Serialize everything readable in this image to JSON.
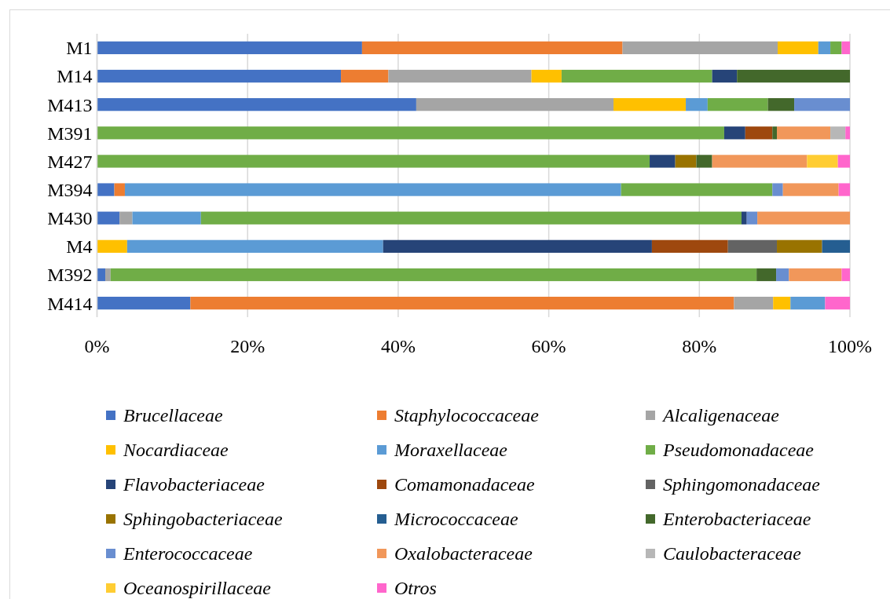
{
  "chart_data": {
    "type": "bar",
    "orientation": "horizontal",
    "stacked": true,
    "categories": [
      "M1",
      "M14",
      "M413",
      "M391",
      "M427",
      "M394",
      "M430",
      "M4",
      "M392",
      "M414"
    ],
    "xlim": [
      0,
      100
    ],
    "xticks": [
      {
        "value": 0,
        "label": "0%"
      },
      {
        "value": 20,
        "label": "20%"
      },
      {
        "value": 40,
        "label": "40%"
      },
      {
        "value": 60,
        "label": "60%"
      },
      {
        "value": 80,
        "label": "80%"
      },
      {
        "value": 100,
        "label": "100%"
      }
    ],
    "grid": "x",
    "legend": "bottom",
    "series": [
      {
        "name": "Brucellaceae",
        "color": "#4472c4",
        "values": [
          35.2,
          32.4,
          42.4,
          0,
          0,
          2.3,
          3.0,
          0,
          1.1,
          12.4
        ]
      },
      {
        "name": "Staphylococcaceae",
        "color": "#ed7d31",
        "values": [
          34.6,
          6.3,
          0,
          0,
          0,
          1.4,
          0,
          0,
          0,
          72.2
        ]
      },
      {
        "name": "Alcaligenaceae",
        "color": "#a5a5a5",
        "values": [
          20.6,
          19.0,
          26.2,
          0,
          0,
          0,
          1.7,
          0,
          0.7,
          5.2
        ]
      },
      {
        "name": "Nocardiaceae",
        "color": "#ffc000",
        "values": [
          5.4,
          4.0,
          9.6,
          0,
          0,
          0,
          0,
          4.0,
          0,
          2.3
        ]
      },
      {
        "name": "Moraxellaceae",
        "color": "#5b9bd5",
        "values": [
          1.6,
          0,
          2.9,
          0,
          0,
          65.9,
          9.1,
          34.0,
          0,
          4.6
        ]
      },
      {
        "name": "Pseudomonadaceae",
        "color": "#70ad47",
        "values": [
          1.5,
          20.0,
          8.0,
          83.3,
          73.4,
          20.1,
          71.8,
          0,
          85.8,
          0
        ]
      },
      {
        "name": "Flavobacteriaceae",
        "color": "#264478",
        "values": [
          0,
          3.3,
          0,
          2.8,
          3.4,
          0,
          0.7,
          35.7,
          0,
          0
        ]
      },
      {
        "name": "Comamonadaceae",
        "color": "#9e480e",
        "values": [
          0,
          0,
          0,
          3.6,
          0,
          0,
          0,
          10.1,
          0,
          0
        ]
      },
      {
        "name": "Sphingomonadaceae",
        "color": "#636363",
        "values": [
          0,
          0,
          0,
          0,
          0,
          0,
          0,
          6.5,
          0,
          0
        ]
      },
      {
        "name": "Sphingobacteriaceae",
        "color": "#997300",
        "values": [
          0,
          0,
          0,
          0,
          2.8,
          0,
          0,
          6.0,
          0,
          0
        ]
      },
      {
        "name": "Micrococcaceae",
        "color": "#255e91",
        "values": [
          0,
          0,
          0,
          0,
          0,
          0,
          0,
          3.7,
          0,
          0
        ]
      },
      {
        "name": "Enterobacteriaceae",
        "color": "#43682b",
        "values": [
          0,
          15.0,
          3.5,
          0.6,
          2.1,
          0,
          0,
          0,
          2.6,
          0
        ]
      },
      {
        "name": "Enterococcaceae",
        "color": "#698ed0",
        "values": [
          0,
          0,
          7.4,
          0,
          0,
          1.4,
          1.4,
          0,
          1.7,
          0
        ]
      },
      {
        "name": "Oxalobacteraceae",
        "color": "#f1975a",
        "values": [
          0,
          0,
          0,
          7.1,
          12.6,
          7.4,
          12.3,
          0,
          7.0,
          0
        ]
      },
      {
        "name": "Caulobacteraceae",
        "color": "#b7b7b7",
        "values": [
          0,
          0,
          0,
          2.0,
          0,
          0,
          0,
          0,
          0,
          0
        ]
      },
      {
        "name": "Oceanospirillaceae",
        "color": "#ffcd33",
        "values": [
          0,
          0,
          0,
          0,
          4.1,
          0,
          0,
          0,
          0,
          0
        ]
      },
      {
        "name": "Otros",
        "color": "#ff66cc",
        "values": [
          1.1,
          0,
          0,
          0.6,
          1.6,
          1.5,
          0,
          0,
          1.1,
          3.3
        ]
      }
    ]
  }
}
